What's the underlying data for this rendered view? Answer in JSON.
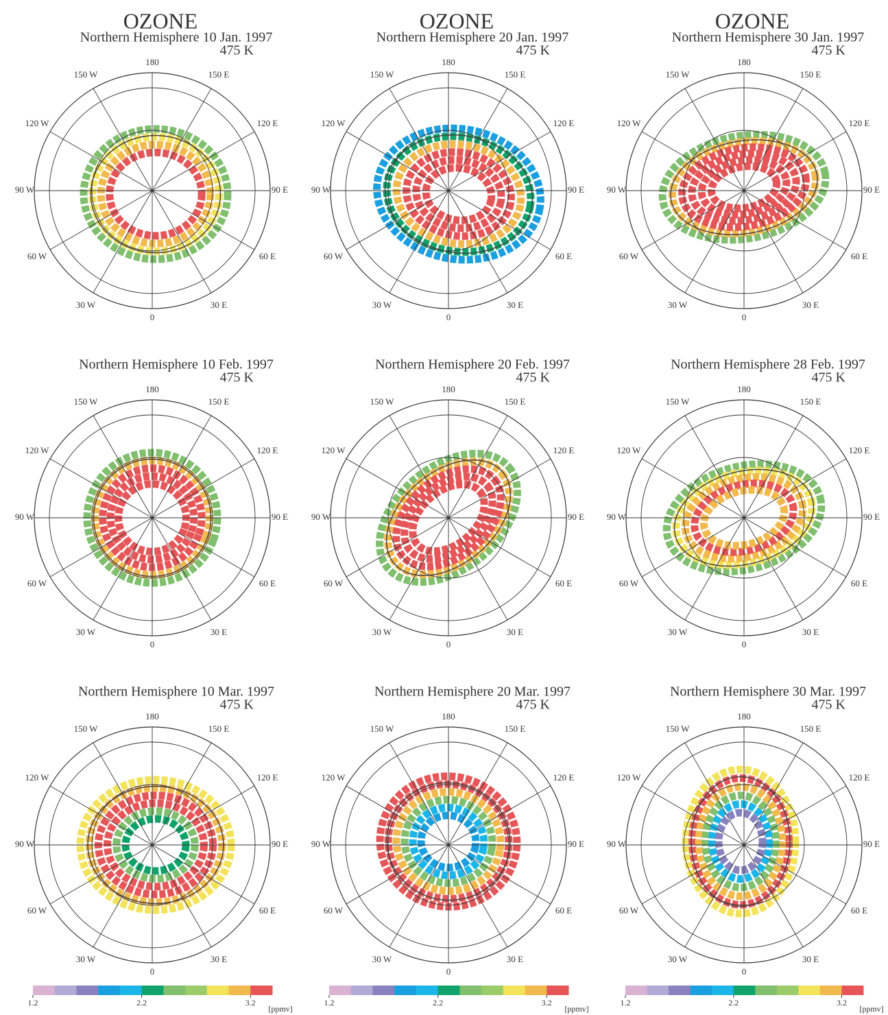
{
  "panels": [
    {
      "title": "OZONE",
      "subtitle": "Northern Hemisphere  10 Jan. 1997",
      "level": "475 K"
    },
    {
      "title": "OZONE",
      "subtitle": "Northern Hemisphere  20 Jan. 1997",
      "level": "475 K"
    },
    {
      "title": "OZONE",
      "subtitle": "Northern Hemisphere  30 Jan. 1997",
      "level": "475 K"
    },
    {
      "subtitle": "Northern Hemisphere  10 Feb. 1997",
      "level": "475 K"
    },
    {
      "subtitle": "Northern Hemisphere  20 Feb. 1997",
      "level": "475 K"
    },
    {
      "subtitle": "Northern Hemisphere  28 Feb. 1997",
      "level": "475 K"
    },
    {
      "subtitle": "Northern Hemisphere  10 Mar. 1997",
      "level": "475 K"
    },
    {
      "subtitle": "Northern Hemisphere  20 Mar. 1997",
      "level": "475 K"
    },
    {
      "subtitle": "Northern Hemisphere  30 Mar. 1997",
      "level": "475 K"
    }
  ],
  "longitude_labels": [
    "0",
    "30 E",
    "60 E",
    "90 E",
    "120 E",
    "150 E",
    "180",
    "150 W",
    "120 W",
    "90 W",
    "60 W",
    "30 W"
  ],
  "colorbar": {
    "colors": [
      "#d9b3d1",
      "#b1a9d6",
      "#8883bf",
      "#1a9fe0",
      "#1ab6ea",
      "#0fa36a",
      "#7fbf6e",
      "#9ccb6a",
      "#f3e35a",
      "#f2b94c",
      "#e65658"
    ],
    "range": [
      1.2,
      3.4
    ],
    "ticks": [
      1.2,
      2.2,
      3.2
    ],
    "unit": "[ppmv]"
  }
}
